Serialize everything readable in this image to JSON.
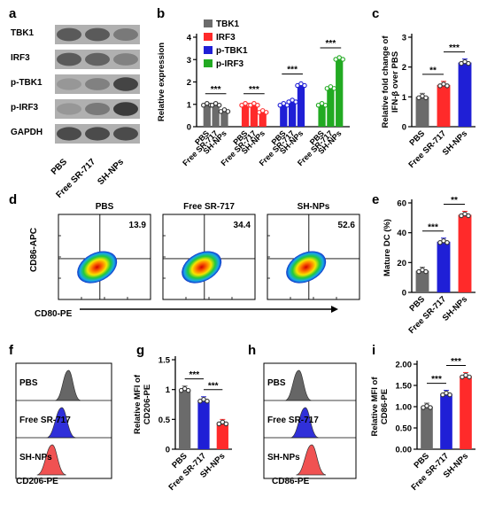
{
  "panels": {
    "a": {
      "letter": "a",
      "rows": [
        "TBK1",
        "IRF3",
        "p-TBK1",
        "p-IRF3",
        "GAPDH"
      ],
      "lanes": [
        "PBS",
        "Free SR-717",
        "SH-NPs"
      ],
      "intensity": [
        [
          0.7,
          0.7,
          0.5
        ],
        [
          0.7,
          0.65,
          0.45
        ],
        [
          0.3,
          0.45,
          0.85
        ],
        [
          0.3,
          0.5,
          0.9
        ],
        [
          0.8,
          0.8,
          0.8
        ]
      ]
    },
    "d": {
      "letter": "d",
      "titles": [
        "PBS",
        "Free SR-717",
        "SH-NPs"
      ],
      "values": [
        "13.9",
        "34.4",
        "52.6"
      ],
      "ylabel": "CD86-APC",
      "xlabel": "CD80-PE"
    },
    "f": {
      "letter": "f",
      "labels": [
        "PBS",
        "Free SR-717",
        "SH-NPs"
      ],
      "colors": [
        "#5a5a5a",
        "#1f1fd6",
        "#ef4444"
      ],
      "xlabel": "CD206-PE"
    },
    "h": {
      "letter": "h",
      "labels": [
        "PBS",
        "Free SR-717",
        "SH-NPs"
      ],
      "colors": [
        "#5a5a5a",
        "#1f1fd6",
        "#ef4444"
      ],
      "xlabel": "CD86-PE"
    }
  },
  "chart_data": [
    {
      "panel": "b",
      "letter": "b",
      "type": "bar",
      "ylabel": "Relative expression",
      "ylim": [
        0,
        4
      ],
      "yticks": [
        0,
        1,
        2,
        3,
        4
      ],
      "categories": [
        "PBS",
        "Free SR-717",
        "SH-NPs"
      ],
      "legend": "top-left",
      "series": [
        {
          "name": "TBK1",
          "color": "#6b6b6b",
          "values": [
            1.0,
            1.0,
            0.72
          ]
        },
        {
          "name": "IRF3",
          "color": "#ff2a2a",
          "values": [
            1.0,
            1.0,
            0.68
          ]
        },
        {
          "name": "p-TBK1",
          "color": "#1f1fd6",
          "values": [
            1.0,
            1.15,
            1.88
          ]
        },
        {
          "name": "p-IRF3",
          "color": "#22aa22",
          "values": [
            1.0,
            1.75,
            3.05
          ]
        }
      ],
      "significance": [
        "***",
        "***",
        "***",
        "***"
      ]
    },
    {
      "panel": "c",
      "letter": "c",
      "type": "bar",
      "ylabel": "Relative fold change of IFN-β over PBS",
      "ylim": [
        0,
        3
      ],
      "yticks": [
        0,
        1,
        2,
        3
      ],
      "categories": [
        "PBS",
        "Free SR-717",
        "SH-NPs"
      ],
      "colors": [
        "#6b6b6b",
        "#ff2a2a",
        "#1f1fd6"
      ],
      "values": [
        1.0,
        1.4,
        2.15
      ],
      "significance": [
        {
          "from": 0,
          "to": 1,
          "label": "**"
        },
        {
          "from": 1,
          "to": 2,
          "label": "***"
        }
      ]
    },
    {
      "panel": "e",
      "letter": "e",
      "type": "bar",
      "ylabel": "Mature DC (%)",
      "ylim": [
        0,
        60
      ],
      "yticks": [
        0,
        20,
        40,
        60
      ],
      "categories": [
        "PBS",
        "Free SR-717",
        "SH-NPs"
      ],
      "colors": [
        "#6b6b6b",
        "#1f1fd6",
        "#ff2a2a"
      ],
      "values": [
        14.5,
        34.0,
        52.0
      ],
      "significance": [
        {
          "from": 0,
          "to": 1,
          "label": "***"
        },
        {
          "from": 1,
          "to": 2,
          "label": "**"
        }
      ]
    },
    {
      "panel": "g",
      "letter": "g",
      "type": "bar",
      "ylabel": "Relative MFI of CD206-PE",
      "ylim": [
        0,
        1.5
      ],
      "yticks": [
        0.0,
        0.5,
        1.0,
        1.5
      ],
      "categories": [
        "PBS",
        "Free SR-717",
        "SH-NPs"
      ],
      "colors": [
        "#6b6b6b",
        "#1f1fd6",
        "#ff2a2a"
      ],
      "values": [
        1.0,
        0.82,
        0.44
      ],
      "significance": [
        {
          "from": 0,
          "to": 1,
          "label": "***"
        },
        {
          "from": 1,
          "to": 2,
          "label": "***"
        }
      ]
    },
    {
      "panel": "i",
      "letter": "i",
      "type": "bar",
      "ylabel": "Relative MFI of CD86-PE",
      "ylim": [
        0,
        2.0
      ],
      "yticks": [
        0.0,
        0.5,
        1.0,
        1.5,
        2.0
      ],
      "ytickLabels": [
        "0.00",
        "0.50",
        "1.00",
        "1.50",
        "2.00"
      ],
      "categories": [
        "PBS",
        "Free SR-717",
        "SH-NPs"
      ],
      "colors": [
        "#6b6b6b",
        "#1f1fd6",
        "#ff2a2a"
      ],
      "values": [
        1.0,
        1.3,
        1.72
      ],
      "significance": [
        {
          "from": 0,
          "to": 1,
          "label": "***"
        },
        {
          "from": 1,
          "to": 2,
          "label": "***"
        }
      ]
    }
  ]
}
